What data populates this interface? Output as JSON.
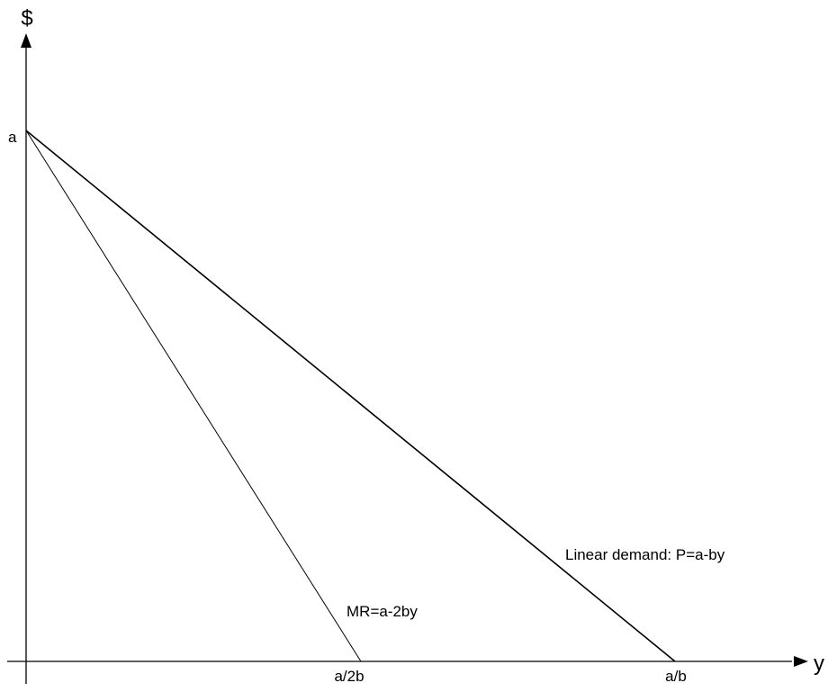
{
  "diagram": {
    "axes": {
      "y_axis_label": "$",
      "x_axis_label": "y"
    },
    "tick_labels": {
      "a": "a",
      "a_over_2b": "a/2b",
      "a_over_b": "a/b"
    },
    "curves": {
      "demand_label": "Linear demand: P=a-by",
      "mr_label": "MR=a-2by"
    },
    "colors": {
      "line": "#000000",
      "background": "#ffffff"
    }
  }
}
